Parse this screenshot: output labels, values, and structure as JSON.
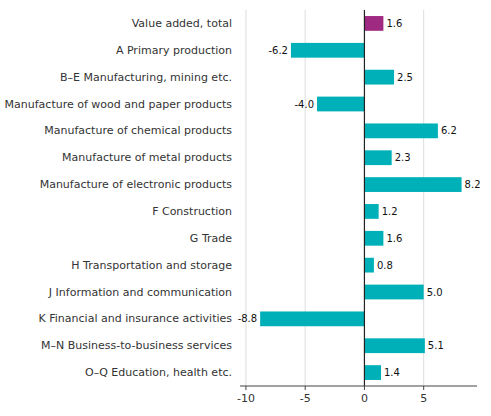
{
  "chart_data": {
    "type": "bar",
    "orientation": "horizontal",
    "categories": [
      "Value added, total",
      "A Primary production",
      "B–E Manufacturing, mining etc.",
      "Manufacture of wood and paper products",
      "Manufacture of chemical products",
      "Manufacture of metal products",
      "Manufacture of electronic products",
      "F Construction",
      "G Trade",
      "H Transportation and storage",
      "J Information and communication",
      "K Financial and insurance activities",
      "M–N Business-to-business services",
      "O–Q Education, health etc."
    ],
    "values": [
      1.6,
      -6.2,
      2.5,
      -4.0,
      6.2,
      2.3,
      8.2,
      1.2,
      1.6,
      0.8,
      5.0,
      -8.8,
      5.1,
      1.4
    ],
    "value_labels": [
      "1.6",
      "-6.2",
      "2.5",
      "-4.0",
      "6.2",
      "2.3",
      "8.2",
      "1.2",
      "1.6",
      "0.8",
      "5.0",
      "-8.8",
      "5.1",
      "1.4"
    ],
    "colors": [
      "#9e2a82",
      "#00b0b9",
      "#00b0b9",
      "#00b0b9",
      "#00b0b9",
      "#00b0b9",
      "#00b0b9",
      "#00b0b9",
      "#00b0b9",
      "#00b0b9",
      "#00b0b9",
      "#00b0b9",
      "#00b0b9",
      "#00b0b9"
    ],
    "xlim": [
      -10.5,
      9.5
    ],
    "xticks": [
      -10,
      -5,
      0,
      5
    ],
    "grid": true,
    "data_labels": true
  }
}
